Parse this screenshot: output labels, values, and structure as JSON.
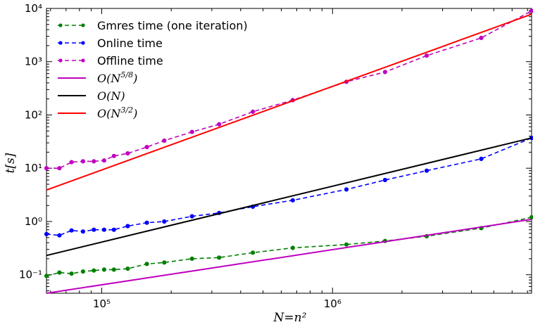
{
  "chart_data": {
    "type": "line",
    "title": "",
    "xlabel": "N=n²",
    "ylabel": "t[s]",
    "xscale": "log",
    "yscale": "log",
    "xlim": [
      57600,
      7290000
    ],
    "ylim": [
      0.045,
      10000
    ],
    "grid": false,
    "legend_position": "top-left",
    "x_ticks": [
      {
        "value": 100000,
        "label": "10⁵"
      },
      {
        "value": 1000000,
        "label": "10⁶"
      }
    ],
    "y_ticks": [
      {
        "value": 0.1,
        "label": "10⁻¹"
      },
      {
        "value": 1,
        "label": "10⁰"
      },
      {
        "value": 10,
        "label": "10¹"
      },
      {
        "value": 100,
        "label": "10²"
      },
      {
        "value": 1000,
        "label": "10³"
      },
      {
        "value": 10000,
        "label": "10⁴"
      }
    ],
    "series": [
      {
        "name": "Gmres time (one iteration)",
        "color": "#008000",
        "style": "dashed-markers",
        "x": [
          57600,
          65536,
          73984,
          82944,
          92416,
          102400,
          112896,
          129600,
          156816,
          186624,
          246016,
          322624,
          451584,
          672400,
          1149184,
          1690000,
          2560000,
          4410000,
          7290000
        ],
        "y": [
          0.095,
          0.11,
          0.105,
          0.115,
          0.12,
          0.125,
          0.125,
          0.13,
          0.16,
          0.17,
          0.2,
          0.21,
          0.26,
          0.32,
          0.37,
          0.43,
          0.53,
          0.75,
          1.2
        ]
      },
      {
        "name": "Online time",
        "color": "#0000ff",
        "style": "dashed-markers",
        "x": [
          57600,
          65536,
          73984,
          82944,
          92416,
          102400,
          112896,
          129600,
          156816,
          186624,
          246016,
          322624,
          451584,
          672400,
          1149184,
          1690000,
          2560000,
          4410000,
          7290000
        ],
        "y": [
          0.58,
          0.55,
          0.68,
          0.65,
          0.7,
          0.7,
          0.7,
          0.82,
          0.95,
          1.0,
          1.25,
          1.45,
          1.9,
          2.5,
          4.0,
          6.0,
          9.0,
          15,
          37
        ]
      },
      {
        "name": "Offline time",
        "color": "#bf00bf",
        "style": "dashed-markers",
        "x": [
          57600,
          65536,
          73984,
          82944,
          92416,
          102400,
          112896,
          129600,
          156816,
          186624,
          246016,
          322624,
          451584,
          672400,
          1149184,
          1690000,
          2560000,
          4410000,
          7290000
        ],
        "y": [
          10,
          10,
          13,
          13.5,
          13.5,
          14,
          17,
          19,
          25,
          33,
          48,
          67,
          115,
          190,
          420,
          640,
          1300,
          2800,
          9000
        ]
      },
      {
        "name": "O(N^{5/8})",
        "color": "#bf00bf",
        "style": "solid",
        "x": [
          57600,
          7290000
        ],
        "y": [
          0.045,
          1.1
        ]
      },
      {
        "name": "O(N)",
        "color": "#000000",
        "style": "solid",
        "x": [
          57600,
          7290000
        ],
        "y": [
          0.23,
          37
        ]
      },
      {
        "name": "O(N^{3/2})",
        "color": "#ff0000",
        "style": "solid",
        "x": [
          57600,
          7290000
        ],
        "y": [
          3.9,
          7800
        ]
      }
    ],
    "legend": [
      {
        "kind": "text",
        "text": "Gmres time (one iteration)",
        "color": "#008000",
        "style": "dashed-markers"
      },
      {
        "kind": "text",
        "text": "Online time",
        "color": "#0000ff",
        "style": "dashed-markers"
      },
      {
        "kind": "text",
        "text": "Offline time",
        "color": "#bf00bf",
        "style": "dashed-markers"
      },
      {
        "kind": "math",
        "pre": "O(N",
        "exp": "5/8",
        "post": ")",
        "color": "#bf00bf",
        "style": "solid"
      },
      {
        "kind": "math",
        "pre": "O(N)",
        "exp": "",
        "post": "",
        "color": "#000000",
        "style": "solid"
      },
      {
        "kind": "math",
        "pre": "O(N",
        "exp": "3/2",
        "post": ")",
        "color": "#ff0000",
        "style": "solid"
      }
    ]
  }
}
